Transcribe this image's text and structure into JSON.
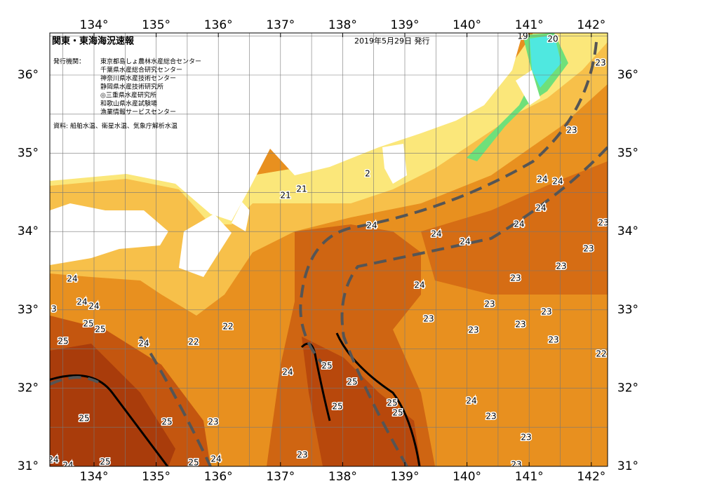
{
  "header": {
    "title": "関東・東海海況速報",
    "date": "2019年5月29日 発行"
  },
  "publisher_label": "発行機関：",
  "agencies": [
    "東京都島しょ農林水産総合センター",
    "千葉県水産総合研究センター",
    "神奈川県水産技術センター",
    "静岡県水産技術研究所",
    "◎三重県水産研究所",
    "和歌山県水産試験場",
    "漁業情報サービスセンター"
  ],
  "source": "資料: 船舶水温、衛星水温、気象庁解析水温",
  "lon_labels": [
    "134°",
    "135°",
    "136°",
    "137°",
    "138°",
    "139°",
    "140°",
    "141°",
    "142°"
  ],
  "lat_labels": [
    "31°",
    "32°",
    "33°",
    "34°",
    "35°",
    "36°"
  ],
  "contour_labels": [
    "19",
    "20",
    "23",
    "23",
    "24",
    "24",
    "24",
    "24",
    "23",
    "23",
    "24",
    "24",
    "24",
    "21",
    "21",
    "2",
    "23",
    "23",
    "24",
    "23",
    "23",
    "23",
    "23",
    "23",
    "23",
    "22",
    "24",
    "24",
    "24",
    "25",
    "25",
    "25",
    "24",
    "22",
    "22",
    "24",
    "25",
    "25",
    "25",
    "25",
    "25",
    "24",
    "23",
    "23",
    "25",
    "25",
    "23",
    "23",
    "24",
    "25",
    "25",
    "24",
    "24",
    "3",
    "23"
  ]
}
